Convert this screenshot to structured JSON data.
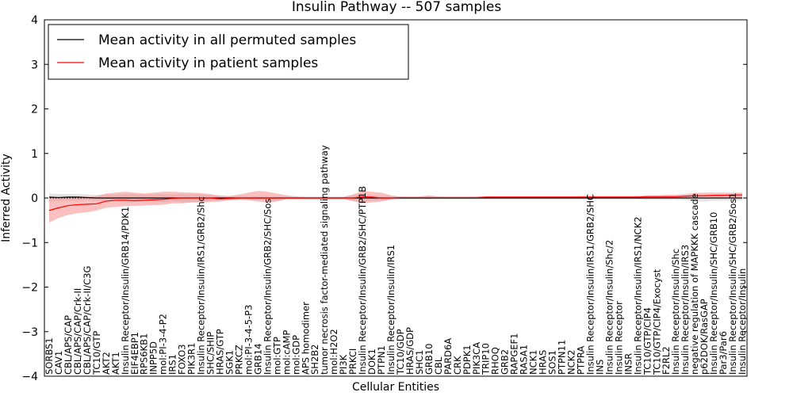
{
  "chart_data": {
    "type": "line",
    "title": "Insulin Pathway -- 507 samples",
    "xlabel": "Cellular Entities",
    "ylabel": "Inferred Activity",
    "ylim": [
      -4,
      4
    ],
    "yticks": [
      -4,
      -3,
      -2,
      -1,
      0,
      1,
      2,
      3,
      4
    ],
    "ytick_labels": [
      "−4",
      "−3",
      "−2",
      "−1",
      "0",
      "1",
      "2",
      "3",
      "4"
    ],
    "categories": [
      "SORBS1",
      "CAV1",
      "CBL/APS/CAP",
      "CBL/APS/CAP/Crk-II",
      "CBL/APS/CAP/Crk-II/C3G",
      "TC10/GTP",
      "AKT2",
      "AKT1",
      "Insulin Receptor/Insulin/GRB14/PDK1",
      "EIF4EBP1",
      "RPS6KB1",
      "INPP5D",
      "mol:PI-3-4-P2",
      "IRS1",
      "FOXO3",
      "PIK3R1",
      "Insulin Receptor/Insulin/IRS1/GRB2/Shc",
      "SHC/SHIP",
      "HRAS/GTP",
      "SGK1",
      "PRKCZ",
      "mol:PI-3-4-5-P3",
      "GRB14",
      "Insulin Receptor/Insulin/GRB2/SHC/Sos",
      "mol:GTP",
      "mol:cAMP",
      "mol:GDP",
      "APS homodimer",
      "SH2B2",
      "tumor necrosis factor-mediated signaling pathway",
      "mol:H2O2",
      "PI3K",
      "PRKCI",
      "Insulin Receptor/Insulin/GRB2/SHC/PTP1B",
      "DOK1",
      "PTPN1",
      "Insulin Receptor/Insulin/IRS1",
      "TC10/GDP",
      "HRAS/GDP",
      "SHC1",
      "GRB10",
      "CBL",
      "PARD6A",
      "CRK",
      "PDPK1",
      "PIK3CA",
      "TRIP10",
      "RHOQ",
      "GRB2",
      "RAPGEF1",
      "RASA1",
      "NCK1",
      "HRAS",
      "SOS1",
      "PTPN11",
      "NCK2",
      "PTPRA",
      "Insulin Receptor/Insulin/IRS1/GRB2/SHC",
      "INS",
      "Insulin Receptor/Insulin/Shc/2",
      "Insulin Receptor",
      "INSR",
      "Insulin Receptor/Insulin/IRS1/NCK2",
      "TC10/GTP/CIP4",
      "TC10/GTP/CIP4/Exocyst",
      "F2RL2",
      "Insulin Receptor/Insulin/Shc",
      "Insulin Receptor/Insulin/IRS3",
      "negative regulation of MAPKKK cascade",
      "p62DOK/RasGAP",
      "Insulin Receptor/Insulin/SHC/GRB10",
      "Par3/Par6",
      "Insulin Receptor/Insulin/SHC/GRB2/Sos1",
      "Insulin Receptor/Insulin"
    ],
    "series": [
      {
        "name": "Mean activity in all permuted samples",
        "color": "#000000",
        "band_color": "#c9c9c9",
        "values": [
          0.02,
          0.01,
          0.02,
          0.02,
          0.01,
          0.0,
          0.0,
          0.0,
          0.0,
          0.0,
          0.0,
          0.0,
          0.0,
          0.0,
          0.0,
          0.0,
          0.0,
          0.0,
          0.0,
          0.0,
          0.0,
          0.0,
          0.0,
          0.0,
          0.0,
          0.0,
          0.0,
          0.0,
          0.0,
          0.0,
          0.0,
          0.0,
          0.0,
          0.0,
          0.0,
          0.0,
          0.0,
          0.0,
          0.0,
          0.0,
          0.0,
          0.0,
          0.0,
          0.0,
          0.0,
          0.0,
          0.0,
          0.0,
          0.0,
          0.0,
          0.0,
          0.0,
          0.0,
          0.0,
          0.0,
          0.0,
          0.0,
          0.0,
          0.0,
          0.0,
          0.0,
          0.0,
          0.0,
          0.0,
          0.0,
          0.0,
          0.0,
          0.0,
          0.0,
          0.0,
          0.0,
          0.0,
          0.0,
          0.0
        ],
        "lower": [
          -0.08,
          -0.07,
          -0.06,
          -0.06,
          -0.05,
          -0.06,
          -0.08,
          -0.08,
          -0.1,
          -0.1,
          -0.08,
          -0.08,
          -0.1,
          -0.08,
          -0.1,
          -0.1,
          -0.08,
          -0.06,
          -0.06,
          -0.05,
          -0.05,
          -0.04,
          -0.04,
          -0.04,
          -0.04,
          -0.04,
          -0.04,
          -0.04,
          -0.04,
          -0.04,
          -0.04,
          -0.04,
          -0.06,
          -0.08,
          -0.06,
          -0.05,
          -0.04,
          -0.03,
          -0.03,
          -0.03,
          -0.03,
          -0.03,
          -0.03,
          -0.03,
          -0.03,
          -0.03,
          -0.03,
          -0.03,
          -0.03,
          -0.03,
          -0.03,
          -0.03,
          -0.03,
          -0.03,
          -0.03,
          -0.03,
          -0.03,
          -0.03,
          -0.03,
          -0.03,
          -0.03,
          -0.03,
          -0.03,
          -0.04,
          -0.04,
          -0.04,
          -0.04,
          -0.05,
          -0.08,
          -0.08,
          -0.06,
          -0.06,
          -0.06,
          -0.06
        ],
        "upper": [
          0.1,
          0.09,
          0.09,
          0.09,
          0.08,
          0.07,
          0.08,
          0.08,
          0.09,
          0.09,
          0.08,
          0.08,
          0.09,
          0.08,
          0.09,
          0.09,
          0.08,
          0.06,
          0.06,
          0.05,
          0.05,
          0.04,
          0.04,
          0.04,
          0.04,
          0.04,
          0.04,
          0.04,
          0.04,
          0.04,
          0.04,
          0.04,
          0.06,
          0.08,
          0.06,
          0.05,
          0.04,
          0.03,
          0.03,
          0.03,
          0.03,
          0.03,
          0.03,
          0.03,
          0.03,
          0.03,
          0.03,
          0.03,
          0.03,
          0.03,
          0.03,
          0.03,
          0.03,
          0.03,
          0.03,
          0.03,
          0.03,
          0.03,
          0.03,
          0.03,
          0.03,
          0.03,
          0.03,
          0.04,
          0.04,
          0.04,
          0.04,
          0.05,
          0.08,
          0.08,
          0.06,
          0.06,
          0.06,
          0.06
        ]
      },
      {
        "name": "Mean activity in patient samples",
        "color": "#ff0000",
        "band_color": "#f58a8a",
        "values": [
          -0.28,
          -0.22,
          -0.17,
          -0.15,
          -0.14,
          -0.13,
          -0.07,
          -0.05,
          -0.05,
          -0.06,
          -0.05,
          -0.04,
          -0.03,
          -0.01,
          0.0,
          0.0,
          0.0,
          0.0,
          -0.02,
          -0.01,
          0.0,
          0.0,
          0.0,
          0.0,
          0.0,
          0.0,
          0.0,
          0.0,
          0.0,
          0.0,
          0.0,
          0.0,
          0.0,
          0.03,
          0.02,
          0.0,
          0.0,
          0.01,
          0.01,
          0.01,
          0.01,
          0.01,
          0.01,
          0.01,
          0.01,
          0.01,
          0.02,
          0.02,
          0.02,
          0.02,
          0.02,
          0.02,
          0.02,
          0.02,
          0.02,
          0.02,
          0.02,
          0.02,
          0.02,
          0.02,
          0.02,
          0.02,
          0.02,
          0.03,
          0.03,
          0.03,
          0.03,
          0.04,
          0.05,
          0.05,
          0.06,
          0.06,
          0.07,
          0.07
        ],
        "lower": [
          -0.55,
          -0.45,
          -0.38,
          -0.34,
          -0.32,
          -0.28,
          -0.22,
          -0.2,
          -0.18,
          -0.18,
          -0.17,
          -0.16,
          -0.15,
          -0.12,
          -0.12,
          -0.1,
          -0.1,
          -0.09,
          -0.08,
          -0.05,
          -0.04,
          -0.05,
          -0.08,
          -0.1,
          -0.08,
          -0.02,
          -0.02,
          -0.02,
          -0.02,
          -0.02,
          -0.02,
          -0.02,
          -0.07,
          -0.12,
          -0.1,
          -0.08,
          -0.03,
          0.0,
          0.0,
          0.0,
          -0.02,
          0.0,
          0.0,
          0.0,
          0.0,
          0.0,
          0.0,
          0.0,
          0.0,
          0.0,
          0.0,
          0.0,
          0.0,
          0.0,
          0.0,
          0.0,
          0.0,
          0.0,
          0.0,
          0.0,
          0.0,
          0.0,
          0.0,
          0.0,
          0.0,
          0.0,
          0.0,
          0.0,
          0.02,
          0.02,
          0.02,
          0.02,
          0.02,
          0.02
        ],
        "upper": [
          0.02,
          0.02,
          0.03,
          0.03,
          0.03,
          0.04,
          0.1,
          0.12,
          0.14,
          0.12,
          0.1,
          0.12,
          0.14,
          0.14,
          0.13,
          0.12,
          0.11,
          0.09,
          0.05,
          0.04,
          0.08,
          0.12,
          0.16,
          0.14,
          0.1,
          0.06,
          0.03,
          0.02,
          0.02,
          0.02,
          0.02,
          0.02,
          0.08,
          0.16,
          0.14,
          0.12,
          0.06,
          0.03,
          0.03,
          0.03,
          0.06,
          0.03,
          0.03,
          0.03,
          0.03,
          0.03,
          0.04,
          0.04,
          0.04,
          0.04,
          0.04,
          0.04,
          0.04,
          0.04,
          0.04,
          0.04,
          0.05,
          0.05,
          0.05,
          0.05,
          0.05,
          0.05,
          0.05,
          0.06,
          0.06,
          0.07,
          0.07,
          0.09,
          0.11,
          0.12,
          0.12,
          0.12,
          0.12,
          0.12
        ]
      }
    ],
    "legend": {
      "location": "upper-left"
    }
  }
}
